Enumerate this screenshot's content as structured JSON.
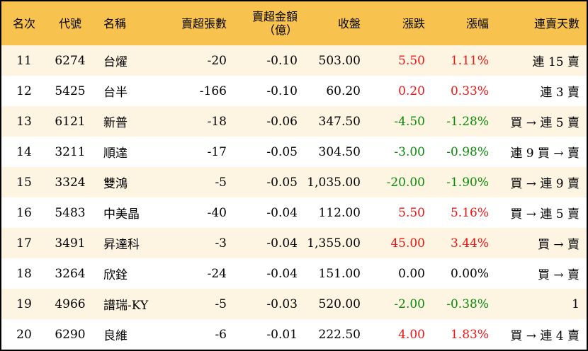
{
  "headers": [
    "名次",
    "代號",
    "名稱",
    "賣超張數",
    "賣超金額",
    "（億）",
    "收盤",
    "漲跌",
    "漲幅",
    "連賣天數"
  ],
  "colors": {
    "header_bg": "#f8c24f",
    "row_alt": "#fdf5e2",
    "up": "#f01414",
    "down": "#0a8a0a"
  },
  "rows": [
    [
      "11",
      "6274",
      "台燿",
      "-20",
      "-0.10",
      "503.00",
      "5.50",
      "1.11%",
      "連 15 賣",
      "up"
    ],
    [
      "12",
      "5425",
      "台半",
      "-166",
      "-0.10",
      "60.20",
      "0.20",
      "0.33%",
      "連 3 賣",
      "up"
    ],
    [
      "13",
      "6121",
      "新普",
      "-18",
      "-0.06",
      "347.50",
      "-4.50",
      "-1.28%",
      "買 → 連 5 賣",
      "down"
    ],
    [
      "14",
      "3211",
      "順達",
      "-17",
      "-0.05",
      "304.50",
      "-3.00",
      "-0.98%",
      "連 9 買 → 賣",
      "down"
    ],
    [
      "15",
      "3324",
      "雙鴻",
      "-5",
      "-0.05",
      "1,035.00",
      "-20.00",
      "-1.90%",
      "買 → 連 9 賣",
      "down"
    ],
    [
      "16",
      "5483",
      "中美晶",
      "-40",
      "-0.04",
      "112.00",
      "5.50",
      "5.16%",
      "買 → 連 5 賣",
      "up"
    ],
    [
      "17",
      "3491",
      "昇達科",
      "-3",
      "-0.04",
      "1,355.00",
      "45.00",
      "3.44%",
      "買 → 賣",
      "up"
    ],
    [
      "18",
      "3264",
      "欣銓",
      "-24",
      "-0.04",
      "151.00",
      "0.00",
      "0.00%",
      "買 → 賣",
      "flat"
    ],
    [
      "19",
      "4966",
      "譜瑞-KY",
      "-5",
      "-0.03",
      "520.00",
      "-2.00",
      "-0.38%",
      "1",
      "down"
    ],
    [
      "20",
      "6290",
      "良維",
      "-6",
      "-0.01",
      "222.50",
      "4.00",
      "1.83%",
      "買 → 連 4 賣",
      "up"
    ]
  ]
}
